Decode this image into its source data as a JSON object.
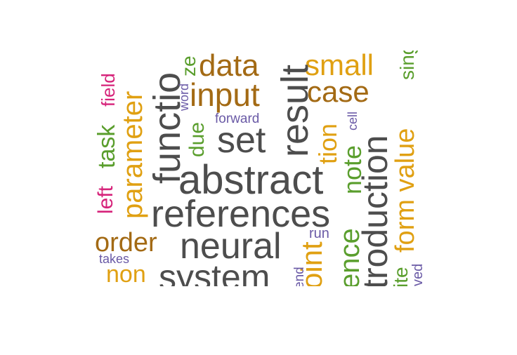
{
  "cloud": {
    "words": {
      "abstract": "abstract",
      "references": "references",
      "neural": "neural",
      "system": "system",
      "set": "set",
      "input": "input",
      "data": "data",
      "small": "small",
      "case": "case",
      "order": "order",
      "non": "non",
      "forward": "forward",
      "run": "run",
      "takes": "takes",
      "function": "functio",
      "result": "result",
      "troduction": "troduction",
      "parameter": "parameter",
      "formvalue": "form value",
      "point": "oint",
      "ence": "ence",
      "tion": "tion",
      "note": "note",
      "task": "task",
      "left": "left",
      "field": "field",
      "ze": "ze",
      "due": "due",
      "word": "word",
      "cell": "cell",
      "ing": "sing",
      "ite": "ite",
      "ved": "ved",
      "end": "end"
    },
    "colors": {
      "gray": "#4d4d4d",
      "brown": "#a36a14",
      "orange": "#e0a012",
      "green": "#5a9e2d",
      "pink": "#d6237a",
      "purple": "#6a5aa6"
    }
  }
}
